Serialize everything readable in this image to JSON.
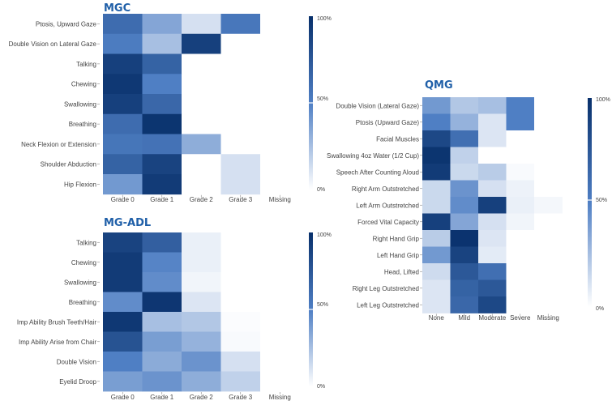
{
  "colors": {
    "scale_low": "#ffffff",
    "scale_high": "#08306b",
    "title": "#1f5fa8"
  },
  "chart_data": [
    {
      "id": "mgc",
      "type": "heatmap",
      "title": "MGC",
      "rows": [
        "Ptosis, Upward Gaze",
        "Double Vision on Lateral Gaze",
        "Talking",
        "Chewing",
        "Swallowing",
        "Breathing",
        "Neck Flexion or Extension",
        "Shoulder Abduction",
        "Hip Flexion"
      ],
      "columns": [
        "Grade 0",
        "Grade 1",
        "Grade 2",
        "Grade 3",
        "Missing"
      ],
      "values": [
        [
          62,
          35,
          12,
          55,
          0
        ],
        [
          52,
          25,
          90,
          0,
          0
        ],
        [
          90,
          68,
          0,
          0,
          0
        ],
        [
          95,
          50,
          0,
          0,
          0
        ],
        [
          90,
          65,
          0,
          0,
          0
        ],
        [
          62,
          97,
          0,
          0,
          0
        ],
        [
          56,
          58,
          32,
          0,
          0
        ],
        [
          68,
          88,
          0,
          12,
          0
        ],
        [
          40,
          93,
          0,
          12,
          0
        ]
      ],
      "scale_range": [
        0,
        100
      ],
      "scale_labels": [
        "100%",
        "50%",
        "0%"
      ]
    },
    {
      "id": "mgadl",
      "type": "heatmap",
      "title": "MG-ADL",
      "rows": [
        "Talking",
        "Chewing",
        "Swallowing",
        "Breathing",
        "Imp Ability Brush Teeth/Hair",
        "Imp Ability Arise from Chair",
        "Double Vision",
        "Eyelid Droop"
      ],
      "columns": [
        "Grade 0",
        "Grade 1",
        "Grade 2",
        "Grade 3",
        "Missing"
      ],
      "values": [
        [
          88,
          70,
          6,
          0,
          0
        ],
        [
          93,
          48,
          6,
          0,
          0
        ],
        [
          93,
          45,
          4,
          0,
          0
        ],
        [
          45,
          96,
          10,
          0,
          0
        ],
        [
          95,
          25,
          22,
          1,
          0
        ],
        [
          78,
          38,
          30,
          2,
          0
        ],
        [
          50,
          33,
          42,
          12,
          0
        ],
        [
          38,
          42,
          32,
          18,
          0
        ]
      ],
      "scale_range": [
        0,
        100
      ],
      "scale_labels": [
        "100%",
        "50%",
        "0%"
      ]
    },
    {
      "id": "qmg",
      "type": "heatmap",
      "title": "QMG",
      "rows": [
        "Double Vision (Lateral Gaze)",
        "Ptosis (Upward Gaze)",
        "Facial Muscles",
        "Swallowing 4oz Water (1/2 Cup)",
        "Speech After Counting Aloud",
        "Right Arm Outstretched",
        "Left Arm Outstretched",
        "Forced Vital Capacity",
        "Right Hand Grip",
        "Left Hand Grip",
        "Head, Lifted",
        "Right Leg Outstretched",
        "Left Leg Outstretched"
      ],
      "columns": [
        "None",
        "Mild",
        "Moderate",
        "Severe",
        "Missing"
      ],
      "values": [
        [
          40,
          22,
          25,
          50,
          0
        ],
        [
          50,
          30,
          10,
          50,
          0
        ],
        [
          85,
          60,
          10,
          0,
          0
        ],
        [
          97,
          18,
          0,
          0,
          0
        ],
        [
          93,
          15,
          20,
          2,
          0
        ],
        [
          15,
          42,
          12,
          5,
          0
        ],
        [
          15,
          45,
          90,
          6,
          3
        ],
        [
          90,
          35,
          12,
          4,
          0
        ],
        [
          20,
          98,
          10,
          0,
          0
        ],
        [
          40,
          88,
          8,
          0,
          0
        ],
        [
          14,
          75,
          60,
          0,
          0
        ],
        [
          10,
          68,
          75,
          0,
          0
        ],
        [
          10,
          65,
          85,
          0,
          0
        ]
      ],
      "scale_range": [
        0,
        100
      ],
      "scale_labels": [
        "100%",
        "50%",
        "0%"
      ]
    }
  ]
}
